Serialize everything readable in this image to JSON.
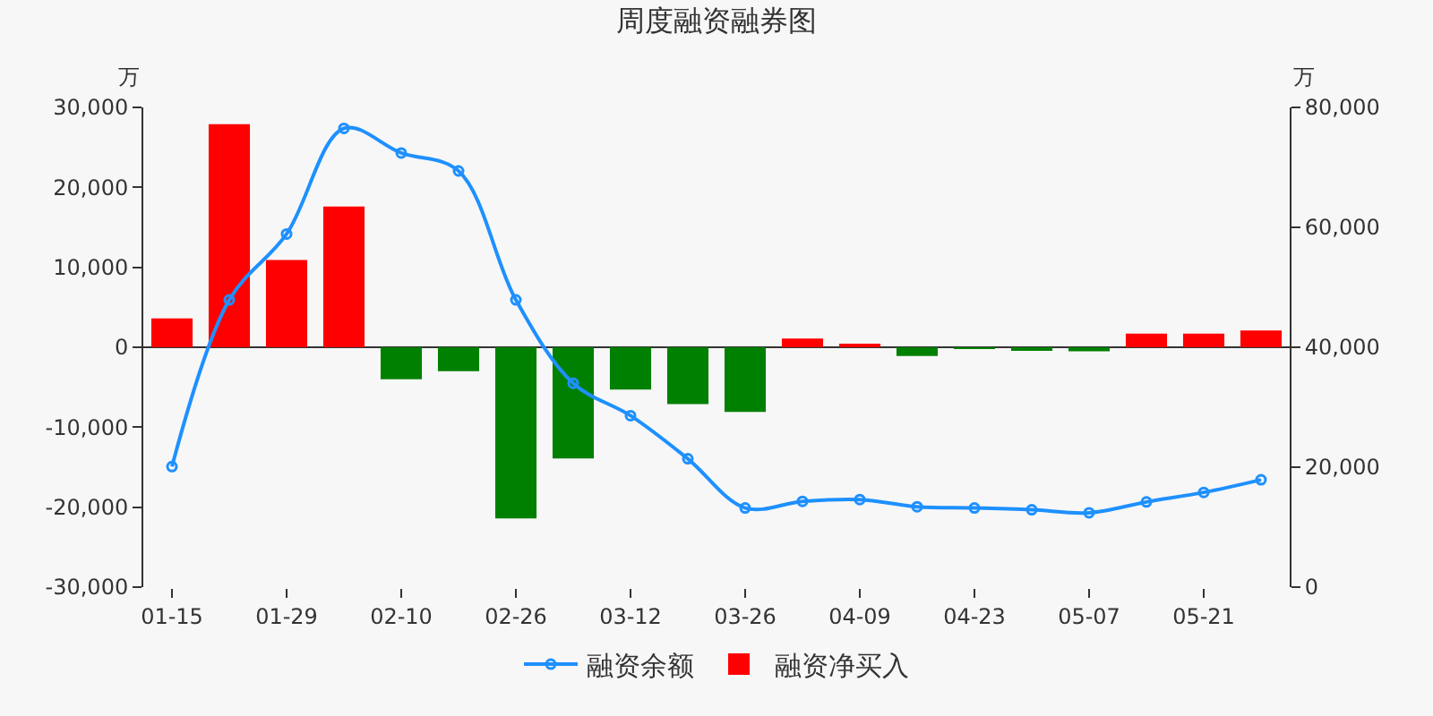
{
  "chart_data": {
    "type": "bar",
    "title": "周度融资融券图",
    "ylabel": "万",
    "y2label": "万",
    "categories": [
      "01-15",
      null,
      "01-29",
      null,
      "02-10",
      null,
      "02-26",
      null,
      "03-12",
      null,
      "03-26",
      null,
      "04-09",
      null,
      "04-23",
      null,
      "05-07",
      null,
      "05-21",
      null
    ],
    "series": [
      {
        "name": "融资余额",
        "type": "line",
        "axis": "y2",
        "color": "#1e90ff",
        "marker": "circle",
        "values": [
          20100,
          47900,
          58900,
          76500,
          72400,
          69400,
          47900,
          34000,
          28600,
          21400,
          13200,
          14300,
          14600,
          13400,
          13200,
          12900,
          12400,
          14200,
          15800,
          17900
        ]
      },
      {
        "name": "融资净买入",
        "type": "bar",
        "colors": [
          "#ff0000",
          "#ff0000",
          "#ff0000",
          "#ff0000",
          "#008000",
          "#008000",
          "#008000",
          "#008000",
          "#008000",
          "#008000",
          "#008000",
          "#ff0000",
          "#ff0000",
          "#008000",
          "#008000",
          "#008000",
          "#008000",
          "#ff0000",
          "#ff0000",
          "#ff0000"
        ],
        "values": [
          3600,
          27900,
          10900,
          17600,
          -4000,
          -3000,
          -21400,
          -13900,
          -5300,
          -7100,
          -8100,
          1100,
          400,
          -1100,
          -100,
          -300,
          -500,
          1700,
          1700,
          2100
        ]
      }
    ],
    "ylim": [
      -30000,
      30000
    ],
    "yticks": [
      {
        "value": -30000,
        "label": "-30,000"
      },
      {
        "value": -20000,
        "label": "-20,000"
      },
      {
        "value": -10000,
        "label": "-10,000"
      },
      0,
      {
        "value": 10000,
        "label": "10,000"
      },
      {
        "value": 20000,
        "label": "20,000"
      },
      {
        "value": 30000,
        "label": "30,000"
      }
    ],
    "y2lim": [
      0,
      80000
    ],
    "y2ticks": [
      0,
      {
        "value": 20000,
        "label": "20,000"
      },
      {
        "value": 40000,
        "label": "40,000"
      },
      {
        "value": 60000,
        "label": "60,000"
      },
      {
        "value": 80000,
        "label": "80,000"
      }
    ],
    "legend": "bottom"
  }
}
